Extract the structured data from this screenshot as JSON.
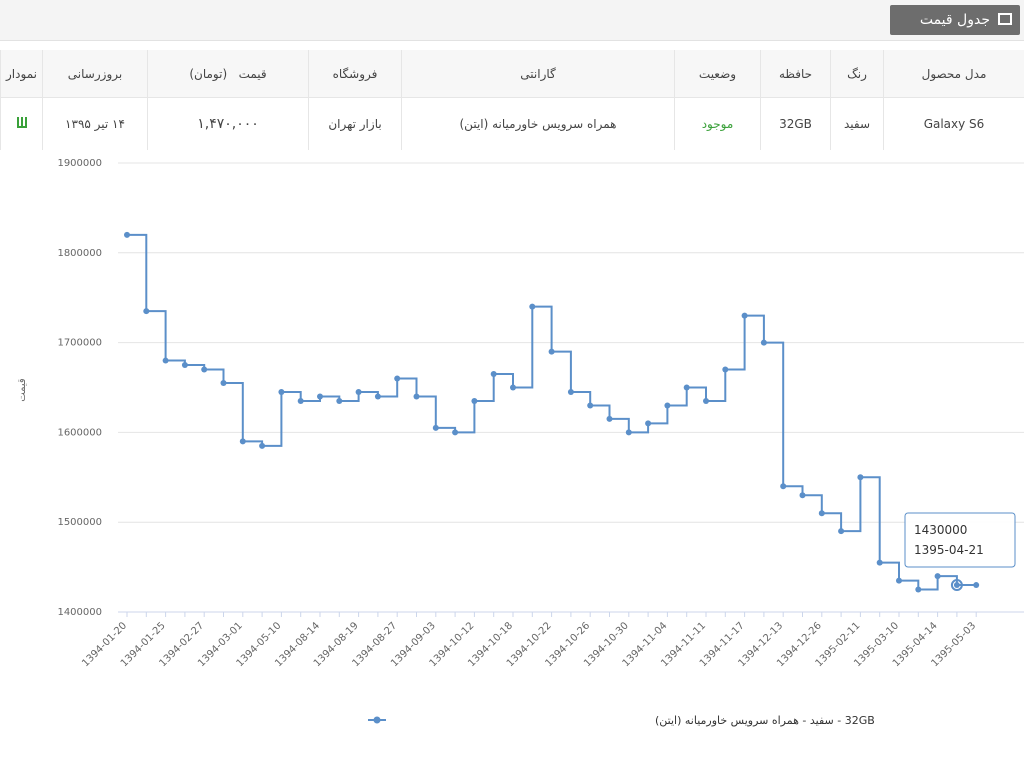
{
  "header": {
    "title": "جدول قیمت"
  },
  "table": {
    "columns": [
      "مدل محصول",
      "رنگ",
      "حافظه",
      "وضعیت",
      "گارانتی",
      "فروشگاه",
      "قیمت   (تومان)",
      "بروزرسانی",
      "نمودار"
    ],
    "rows": [
      [
        "Galaxy S6",
        "سفید",
        "32GB",
        "موجود",
        "همراه سرویس خاورمیانه (ایتن)",
        "بازار تهران",
        "۱,۴۷۰,۰۰۰",
        "۱۴ تیر ۱۳۹۵"
      ]
    ]
  },
  "chart_data": {
    "type": "line",
    "step": "after",
    "grid": true,
    "ylabel": "قیمت",
    "ylim": [
      1400000,
      1900000
    ],
    "yticks": [
      1400000,
      1500000,
      1600000,
      1700000,
      1800000,
      1900000
    ],
    "categories": [
      "1394-01-20",
      null,
      "1394-01-25",
      null,
      "1394-02-27",
      null,
      "1394-03-01",
      null,
      "1394-05-10",
      null,
      "1394-08-14",
      null,
      "1394-08-19",
      null,
      "1394-08-27",
      null,
      "1394-09-03",
      null,
      "1394-10-12",
      null,
      "1394-10-18",
      null,
      "1394-10-22",
      null,
      "1394-10-26",
      null,
      "1394-10-30",
      null,
      "1394-11-04",
      null,
      "1394-11-11",
      null,
      "1394-11-17",
      null,
      "1394-12-13",
      null,
      "1394-12-26",
      null,
      "1395-02-11",
      null,
      "1395-03-10",
      null,
      "1395-04-14",
      null,
      "1395-05-03"
    ],
    "series": [
      {
        "name": "32GB - سفید - همراه سرویس خاورمیانه (ایتن)",
        "color": "#5b8fc9",
        "values": [
          1820000,
          1735000,
          1680000,
          1675000,
          1670000,
          1655000,
          1590000,
          1585000,
          1645000,
          1635000,
          1640000,
          1635000,
          1645000,
          1640000,
          1660000,
          1640000,
          1605000,
          1600000,
          1635000,
          1665000,
          1650000,
          1740000,
          1690000,
          1645000,
          1630000,
          1615000,
          1600000,
          1610000,
          1630000,
          1650000,
          1635000,
          1670000,
          1730000,
          1700000,
          1540000,
          1530000,
          1510000,
          1490000,
          1550000,
          1455000,
          1435000,
          1425000,
          1440000,
          1430000,
          1430000
        ]
      }
    ],
    "tooltip": {
      "value": 1430000,
      "date": "1395-04-21"
    }
  }
}
